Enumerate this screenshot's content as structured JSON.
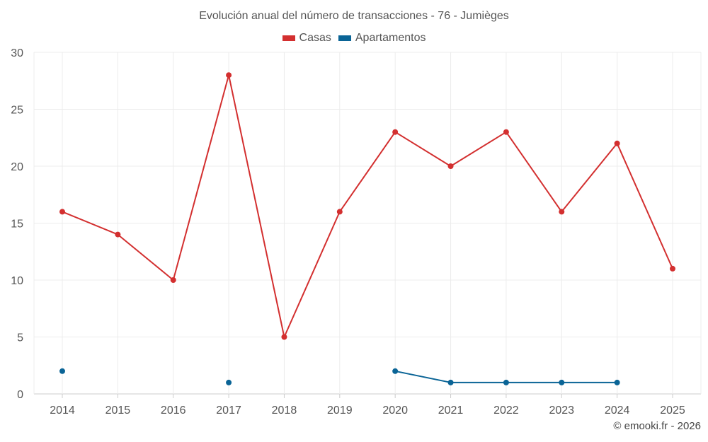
{
  "chart_data": {
    "type": "line",
    "title": "Evolución anual del número de transacciones - 76 - Jumièges",
    "categories": [
      "2014",
      "2015",
      "2016",
      "2017",
      "2018",
      "2019",
      "2020",
      "2021",
      "2022",
      "2023",
      "2024",
      "2025"
    ],
    "series": [
      {
        "name": "Casas",
        "color": "#d32f2f",
        "values": [
          16,
          14,
          10,
          28,
          5,
          16,
          23,
          20,
          23,
          16,
          22,
          11
        ]
      },
      {
        "name": "Apartamentos",
        "color": "#0a6496",
        "values": [
          2,
          null,
          null,
          1,
          null,
          null,
          2,
          1,
          1,
          1,
          1,
          null
        ]
      }
    ],
    "ylim": [
      0,
      30
    ],
    "yticks": [
      0,
      5,
      10,
      15,
      20,
      25,
      30
    ],
    "grid": true,
    "legend_position": "top-center"
  },
  "credit": "© emooki.fr - 2026"
}
